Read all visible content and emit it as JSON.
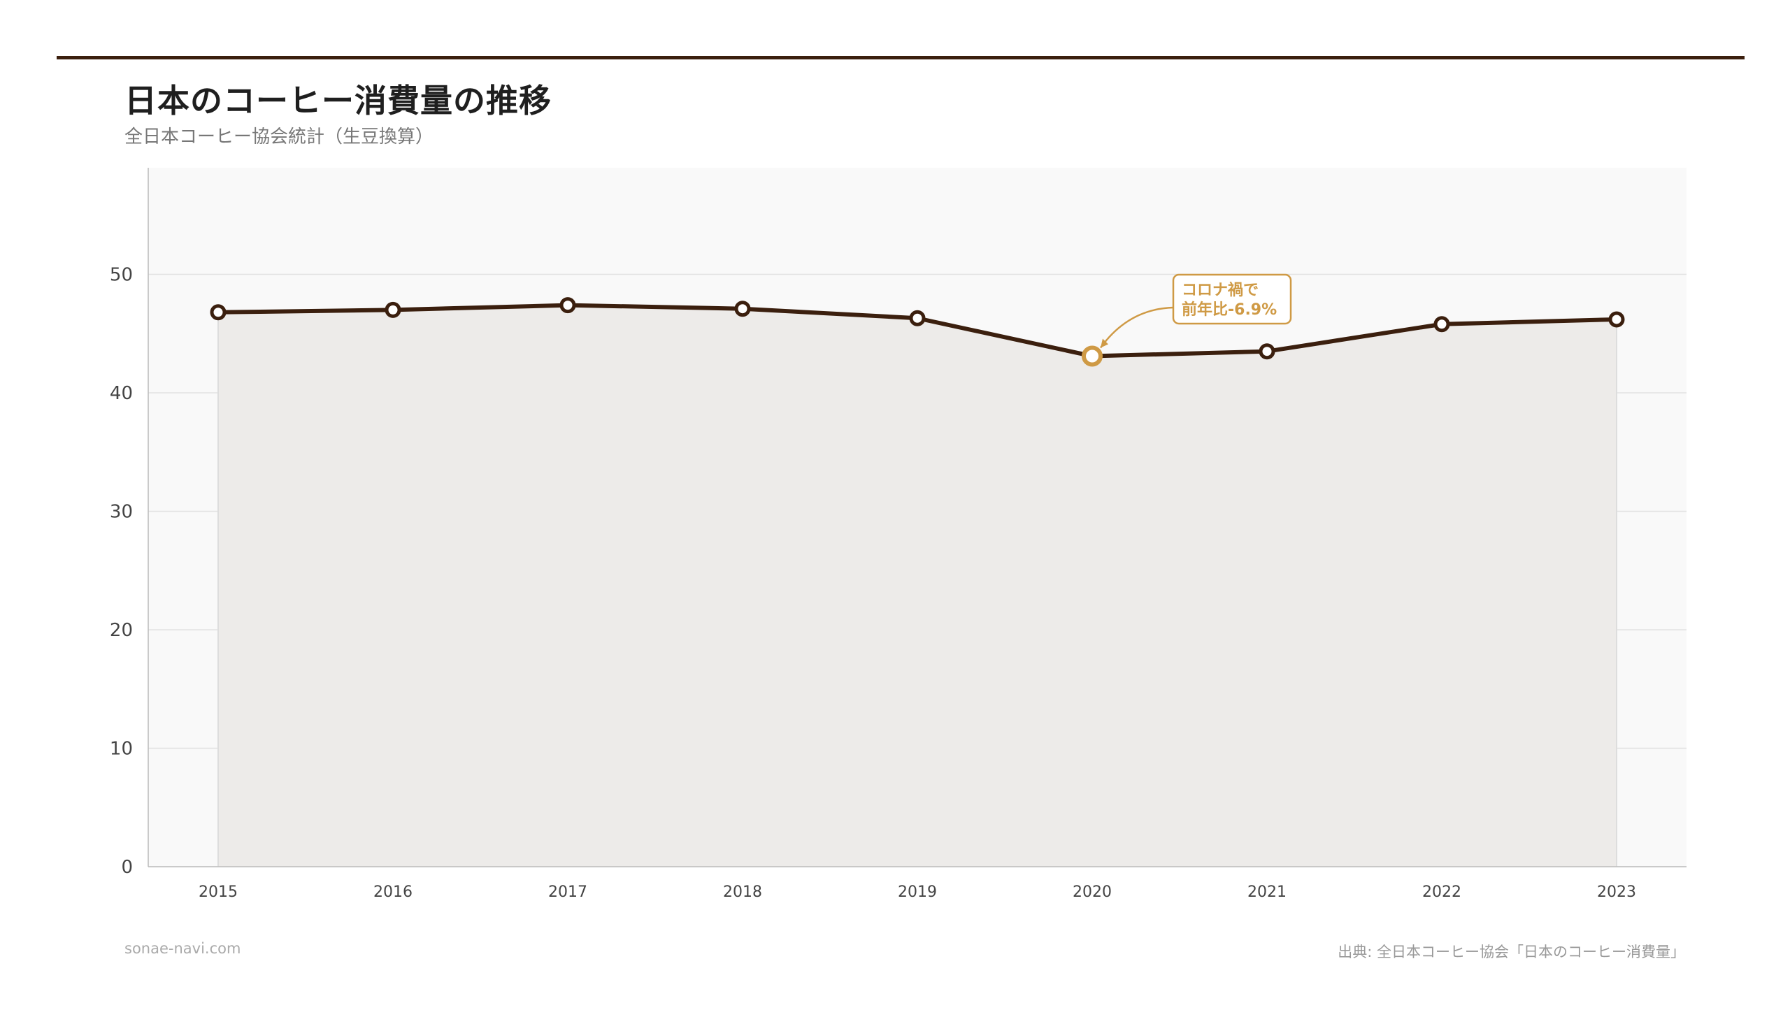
{
  "header": {
    "title": "日本のコーヒー消費量の推移",
    "subtitle": "全日本コーヒー協会統計（生豆換算）"
  },
  "footer": {
    "site": "sonae-navi.com",
    "source": "出典: 全日本コーヒー協会「日本のコーヒー消費量」"
  },
  "colors": {
    "line": "#3b1f0e",
    "highlight": "#cf9a45",
    "area": "#edebe9",
    "plot_bg": "#f9f9f9"
  },
  "chart_data": {
    "type": "area",
    "x": [
      "2015",
      "2016",
      "2017",
      "2018",
      "2019",
      "2020",
      "2021",
      "2022",
      "2023"
    ],
    "values": [
      46.8,
      47.0,
      47.4,
      47.1,
      46.3,
      43.1,
      43.5,
      45.8,
      46.2
    ],
    "ylim": [
      0,
      59
    ],
    "yticks": [
      0,
      10,
      20,
      30,
      40,
      50
    ],
    "grid": true,
    "xlabel": "",
    "ylabel": "",
    "annotation": {
      "x": "2020",
      "lines": [
        "コロナ禍で",
        "前年比-6.9%"
      ]
    }
  }
}
